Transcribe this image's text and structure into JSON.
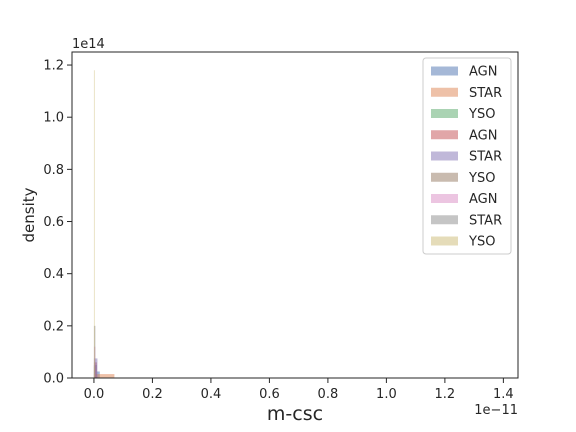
{
  "chart_data": {
    "type": "histogram",
    "xlabel": "m-csc",
    "ylabel": "density",
    "x_offset_text": "1e−11",
    "y_offset_text": "1e14",
    "x_scale": 1e-11,
    "y_scale": 100000000000000.0,
    "xlim": [
      -7.5e-13,
      1.45e-11
    ],
    "ylim": [
      0,
      125000000000000
    ],
    "x_ticks": [
      0,
      2e-12,
      4e-12,
      6e-12,
      8e-12,
      1e-11,
      1.2e-11,
      1.4e-11
    ],
    "x_tick_labels": [
      "0.0",
      "0.2",
      "0.4",
      "0.6",
      "0.8",
      "1.0",
      "1.2",
      "1.4"
    ],
    "y_ticks": [
      0,
      20000000000000,
      40000000000000,
      60000000000000,
      80000000000000,
      100000000000000,
      120000000000000
    ],
    "y_tick_labels": [
      "0.0",
      "0.2",
      "0.4",
      "0.6",
      "0.8",
      "1.0",
      "1.2"
    ],
    "legend_position": "upper right",
    "series": [
      {
        "name": "AGN",
        "color": "#4c72b0",
        "bins": [
          [
            0,
            1e-13,
            5000000000000
          ],
          [
            1e-13,
            2e-13,
            2500000000000
          ]
        ]
      },
      {
        "name": "STAR",
        "color": "#dd8452",
        "bins": [
          [
            0,
            7e-13,
            1500000000000
          ]
        ]
      },
      {
        "name": "YSO",
        "color": "#55a868",
        "bins": [
          [
            0,
            5e-14,
            3000000000000
          ]
        ]
      },
      {
        "name": "AGN",
        "color": "#c44e52",
        "bins": [
          [
            0,
            1e-13,
            6000000000000
          ]
        ]
      },
      {
        "name": "STAR",
        "color": "#8172b3",
        "bins": [
          [
            0,
            1.2e-13,
            7500000000000
          ]
        ]
      },
      {
        "name": "YSO",
        "color": "#937860",
        "bins": [
          [
            0,
            5e-14,
            4500000000000
          ]
        ]
      },
      {
        "name": "AGN",
        "color": "#da8bc3",
        "bins": [
          [
            0,
            5e-14,
            12000000000000
          ]
        ]
      },
      {
        "name": "STAR",
        "color": "#8c8c8c",
        "bins": [
          [
            0,
            5e-14,
            20000000000000
          ]
        ]
      },
      {
        "name": "YSO",
        "color": "#ccb974",
        "bins": [
          [
            0,
            2e-14,
            118000000000000
          ]
        ]
      }
    ]
  }
}
